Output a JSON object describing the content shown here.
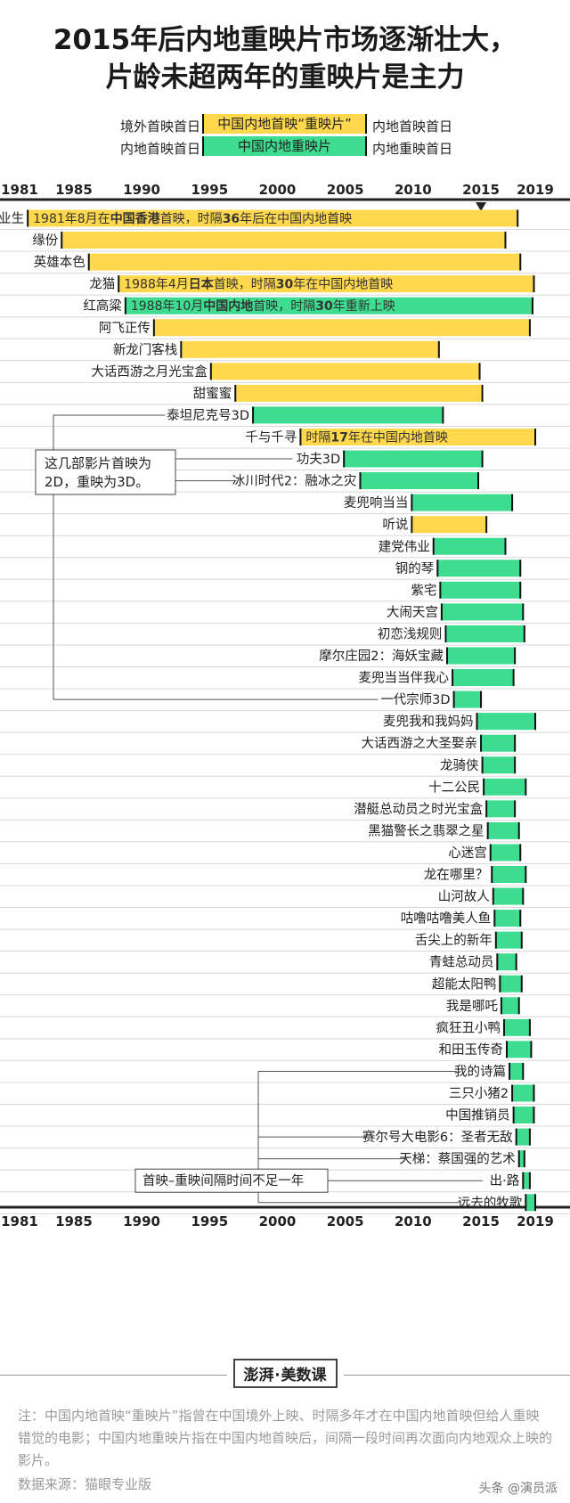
{
  "title_line1": "2015年后内地重映片市场逐渐壮大，",
  "title_line2": "片龄未超两年的重映片是主力",
  "legend": {
    "row1": {
      "left": "境外首映首日",
      "bar": "中国内地首映“重映片”",
      "right": "内地首映首日",
      "color": "#ffd84d"
    },
    "row2": {
      "left": "内地首映首日",
      "bar": "中国内地重映片",
      "right": "内地重映首日",
      "color": "#3ddc8f"
    }
  },
  "chart_data": {
    "type": "bar",
    "orientation": "horizontal-range",
    "xlim": [
      1981,
      2020
    ],
    "axis_ticks": [
      1981,
      1985,
      1990,
      1995,
      2000,
      2005,
      2010,
      2015,
      2019
    ],
    "highlight_year": 2015,
    "colors": {
      "yellow": "#ffd84d",
      "green": "#3ddc8f"
    },
    "films": [
      {
        "name": "失业生",
        "kind": "yellow",
        "start": 1981.6,
        "end": 2017.7,
        "note_plain": "1981年8月在",
        "note_bold": "中国香港",
        "note_rest": "首映，时隔",
        "note_bold2": "36",
        "note_rest2": "年后在中国内地首映"
      },
      {
        "name": "缘份",
        "kind": "yellow",
        "start": 1984.1,
        "end": 2016.8
      },
      {
        "name": "英雄本色",
        "kind": "yellow",
        "start": 1986.1,
        "end": 2017.9
      },
      {
        "name": "龙猫",
        "kind": "yellow",
        "start": 1988.3,
        "end": 2018.9,
        "note_plain": "1988年4月",
        "note_bold": "日本",
        "note_rest": "首映，时隔",
        "note_bold2": "30",
        "note_rest2": "年在中国内地首映"
      },
      {
        "name": "红高粱",
        "kind": "green",
        "start": 1988.8,
        "end": 2018.8,
        "note_plain": "1988年10月",
        "note_bold": "中国内地",
        "note_rest": "首映，时隔",
        "note_bold2": "30",
        "note_rest2": "年重新上映"
      },
      {
        "name": "阿飞正传",
        "kind": "yellow",
        "start": 1990.9,
        "end": 2018.6
      },
      {
        "name": "新龙门客栈",
        "kind": "yellow",
        "start": 1992.9,
        "end": 2011.9
      },
      {
        "name": "大话西游之月光宝盒",
        "kind": "yellow",
        "start": 1995.1,
        "end": 2014.9
      },
      {
        "name": "甜蜜蜜",
        "kind": "yellow",
        "start": 1996.9,
        "end": 2015.1
      },
      {
        "name": "泰坦尼克号3D",
        "kind": "green",
        "start": 1998.2,
        "end": 2012.2
      },
      {
        "name": "千与千寻",
        "kind": "yellow",
        "start": 2001.7,
        "end": 2019.0,
        "note_plain": "时隔",
        "note_bold": "17",
        "note_rest": "年在中国内地首映",
        "note_bold2": "",
        "note_rest2": ""
      },
      {
        "name": "功夫3D",
        "kind": "green",
        "start": 2004.9,
        "end": 2015.1
      },
      {
        "name": "冰川时代2：融冰之灾",
        "kind": "green",
        "start": 2006.1,
        "end": 2014.8
      },
      {
        "name": "麦兜响当当",
        "kind": "green",
        "start": 2009.9,
        "end": 2017.3
      },
      {
        "name": "听说",
        "kind": "yellow",
        "start": 2009.9,
        "end": 2015.4
      },
      {
        "name": "建党伟业",
        "kind": "green",
        "start": 2011.5,
        "end": 2016.8
      },
      {
        "name": "钢的琴",
        "kind": "green",
        "start": 2011.8,
        "end": 2017.9
      },
      {
        "name": "紫宅",
        "kind": "green",
        "start": 2012.0,
        "end": 2017.9
      },
      {
        "name": "大闹天宫",
        "kind": "green",
        "start": 2012.1,
        "end": 2018.1
      },
      {
        "name": "初恋浅规则",
        "kind": "green",
        "start": 2012.4,
        "end": 2018.2
      },
      {
        "name": "摩尔庄园2：海妖宝藏",
        "kind": "green",
        "start": 2012.5,
        "end": 2017.5
      },
      {
        "name": "麦兜当当伴我心",
        "kind": "green",
        "start": 2012.9,
        "end": 2017.4
      },
      {
        "name": "一代宗师3D",
        "kind": "green",
        "start": 2013.0,
        "end": 2015.0
      },
      {
        "name": "麦兜我和我妈妈",
        "kind": "green",
        "start": 2014.7,
        "end": 2019.0
      },
      {
        "name": "大话西游之大圣娶亲",
        "kind": "green",
        "start": 2015.0,
        "end": 2017.5
      },
      {
        "name": "龙骑侠",
        "kind": "green",
        "start": 2015.1,
        "end": 2017.5
      },
      {
        "name": "十二公民",
        "kind": "green",
        "start": 2015.2,
        "end": 2018.3
      },
      {
        "name": "潜艇总动员之时光宝盒",
        "kind": "green",
        "start": 2015.4,
        "end": 2017.5
      },
      {
        "name": "黑猫警长之翡翠之星",
        "kind": "green",
        "start": 2015.5,
        "end": 2017.8
      },
      {
        "name": "心迷宫",
        "kind": "green",
        "start": 2015.7,
        "end": 2017.9
      },
      {
        "name": "龙在哪里？",
        "kind": "green",
        "start": 2015.8,
        "end": 2018.3
      },
      {
        "name": "山河故人",
        "kind": "green",
        "start": 2015.9,
        "end": 2018.1
      },
      {
        "name": "咕噜咕噜美人鱼",
        "kind": "green",
        "start": 2016.0,
        "end": 2017.9
      },
      {
        "name": "舌尖上的新年",
        "kind": "green",
        "start": 2016.1,
        "end": 2018.0
      },
      {
        "name": "青蛙总动员",
        "kind": "green",
        "start": 2016.2,
        "end": 2017.6
      },
      {
        "name": "超能太阳鸭",
        "kind": "green",
        "start": 2016.4,
        "end": 2018.0
      },
      {
        "name": "我是哪吒",
        "kind": "green",
        "start": 2016.5,
        "end": 2017.8
      },
      {
        "name": "疯狂丑小鸭",
        "kind": "green",
        "start": 2016.7,
        "end": 2018.6
      },
      {
        "name": "和田玉传奇",
        "kind": "green",
        "start": 2016.9,
        "end": 2018.7
      },
      {
        "name": "我的诗篇",
        "kind": "green",
        "start": 2017.1,
        "end": 2018.1
      },
      {
        "name": "三只小猪2",
        "kind": "green",
        "start": 2017.3,
        "end": 2018.9
      },
      {
        "name": "中国推销员",
        "kind": "green",
        "start": 2017.4,
        "end": 2018.9
      },
      {
        "name": "赛尔号大电影6：圣者无敌",
        "kind": "green",
        "start": 2017.6,
        "end": 2018.6
      },
      {
        "name": "天梯：蔡国强的艺术",
        "kind": "green",
        "start": 2017.8,
        "end": 2018.2
      },
      {
        "name": "出·路",
        "kind": "green",
        "start": 2018.1,
        "end": 2018.6
      },
      {
        "name": "远去的牧歌",
        "kind": "green",
        "start": 2018.3,
        "end": 2019.0
      }
    ],
    "annotations": [
      {
        "text": "这几部影片首映为2D，重映为3D。",
        "rows": [
          "泰坦尼克号3D",
          "功夫3D",
          "冰川时代2：融冰之灾",
          "一代宗师3D"
        ]
      },
      {
        "text": "首映–重映间隔时间不足一年",
        "rows": [
          "我的诗篇",
          "赛尔号大电影6：圣者无敌",
          "天梯：蔡国强的艺术",
          "出·路",
          "远去的牧歌"
        ]
      }
    ]
  },
  "logo": {
    "left": "澎湃",
    "right": "美数课"
  },
  "note": "注：中国内地首映“重映片”指曾在中国境外上映、时隔多年才在中国内地首映但给人重映错觉的电影；中国内地重映片指在中国内地首映后，间隔一段时间再次面向内地观众上映的影片。",
  "source": "数据来源：猫眼专业版",
  "watermark": "头条 @演员派"
}
